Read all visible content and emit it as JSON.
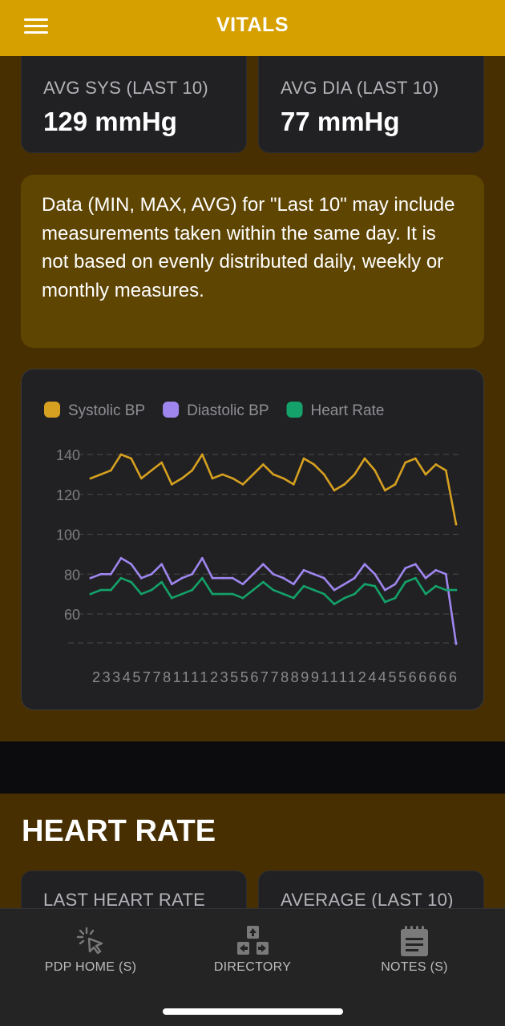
{
  "header": {
    "title": "VITALS",
    "menu_icon": "hamburger-menu-icon",
    "background": "#d6a000"
  },
  "bp_stats": [
    {
      "label": "AVG SYS (LAST 10)",
      "value": "129 mmHg"
    },
    {
      "label": "AVG DIA (LAST 10)",
      "value": "77 mmHg"
    }
  ],
  "notice": {
    "text": "Data (MIN, MAX, AVG) for \"Last 10\" may include measurements taken within the same day. It is not based on evenly distributed daily, weekly or monthly measures."
  },
  "chart_data": {
    "type": "line",
    "title": "",
    "xlabel": "",
    "ylabel": "",
    "ylim": [
      45,
      140
    ],
    "yticks": [
      140,
      120,
      100,
      80,
      60
    ],
    "grid": "horizontal dashed",
    "legend": "top-left",
    "x_tick_text": "2334577811112355677889911112445566666",
    "series": [
      {
        "name": "Systolic BP",
        "color": "#d6a020",
        "values": [
          128,
          130,
          132,
          140,
          138,
          128,
          132,
          136,
          125,
          128,
          132,
          140,
          128,
          130,
          128,
          125,
          130,
          135,
          130,
          128,
          125,
          138,
          135,
          130,
          122,
          125,
          130,
          138,
          132,
          122,
          125,
          136,
          138,
          130,
          135,
          132,
          105
        ]
      },
      {
        "name": "Diastolic BP",
        "color": "#9f86ef",
        "values": [
          78,
          80,
          80,
          88,
          85,
          78,
          80,
          85,
          75,
          78,
          80,
          88,
          78,
          78,
          78,
          75,
          80,
          85,
          80,
          78,
          75,
          82,
          80,
          78,
          72,
          75,
          78,
          85,
          80,
          72,
          75,
          83,
          85,
          78,
          82,
          80,
          45
        ]
      },
      {
        "name": "Heart Rate",
        "color": "#14a26a",
        "values": [
          70,
          72,
          72,
          78,
          76,
          70,
          72,
          76,
          68,
          70,
          72,
          78,
          70,
          70,
          70,
          68,
          72,
          76,
          72,
          70,
          68,
          74,
          72,
          70,
          65,
          68,
          70,
          75,
          74,
          66,
          68,
          76,
          78,
          70,
          74,
          72,
          72
        ]
      }
    ]
  },
  "heart_rate": {
    "title": "HEART RATE",
    "cards": [
      {
        "label": "LAST HEART RATE"
      },
      {
        "label": "AVERAGE (LAST 10)"
      }
    ]
  },
  "bottom_nav": {
    "items": [
      {
        "label": "PDP HOME (S)",
        "icon": "cursor-click-icon"
      },
      {
        "label": "DIRECTORY",
        "icon": "arrow-keys-icon"
      },
      {
        "label": "NOTES (S)",
        "icon": "notepad-icon"
      }
    ]
  }
}
